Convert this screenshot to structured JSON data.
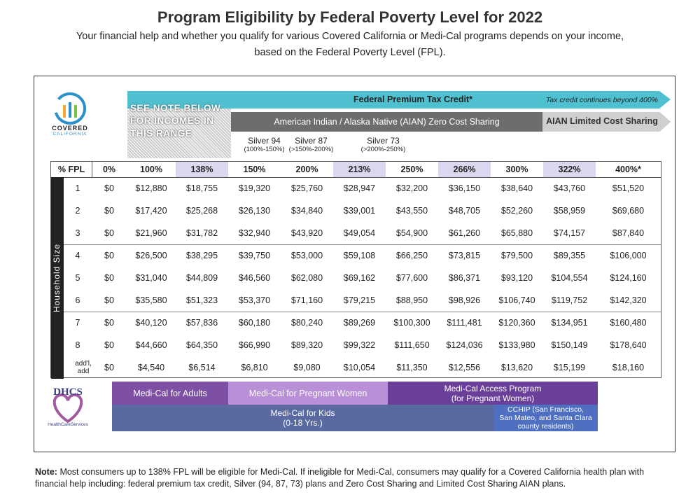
{
  "header": {
    "title": "Program Eligibility by Federal Poverty Level for 2022",
    "subtitle": [
      "Your financial help and whether you qualify for various Covered California or Medi-Cal programs depends on your income,",
      "based on the Federal Poverty Level (FPL)."
    ]
  },
  "logos": {
    "covered_top": "COVERED",
    "covered_bottom": "CALIFORNIA",
    "dhcs": "DHCS",
    "dhcs_sub": "HealthCareServices"
  },
  "bands": {
    "note": "SEE NOTE BELOW FOR INCOMES IN THIS RANGE",
    "ptc": "Federal Premium Tax Credit*",
    "ptc_note": "Tax credit continues beyond 400%",
    "aian": "American Indian / Alaska Native (AIAN) Zero Cost Sharing",
    "aian_limited": "AIAN Limited Cost Sharing",
    "silver": [
      {
        "name": "Silver 94",
        "range": "(100%-150%)"
      },
      {
        "name": "Silver 87",
        "range": "(>150%-200%)"
      },
      {
        "name": "Silver 73",
        "range": "(>200%-250%)"
      }
    ]
  },
  "table": {
    "side_label": "Household Size",
    "columns": [
      "% FPL",
      "0%",
      "100%",
      "138%",
      "150%",
      "200%",
      "213%",
      "250%",
      "266%",
      "300%",
      "322%",
      "400%*"
    ],
    "rows": [
      [
        "1",
        "$0",
        "$12,880",
        "$18,755",
        "$19,320",
        "$25,760",
        "$28,947",
        "$32,200",
        "$36,150",
        "$38,640",
        "$43,760",
        "$51,520"
      ],
      [
        "2",
        "$0",
        "$17,420",
        "$25,268",
        "$26,130",
        "$34,840",
        "$39,001",
        "$43,550",
        "$48,705",
        "$52,260",
        "$58,959",
        "$69,680"
      ],
      [
        "3",
        "$0",
        "$21,960",
        "$31,782",
        "$32,940",
        "$43,920",
        "$49,054",
        "$54,900",
        "$61,260",
        "$65,880",
        "$74,157",
        "$87,840"
      ],
      [
        "4",
        "$0",
        "$26,500",
        "$38,295",
        "$39,750",
        "$53,000",
        "$59,108",
        "$66,250",
        "$73,815",
        "$79,500",
        "$89,355",
        "$106,000"
      ],
      [
        "5",
        "$0",
        "$31,040",
        "$44,809",
        "$46,560",
        "$62,080",
        "$69,162",
        "$77,600",
        "$86,371",
        "$93,120",
        "$104,554",
        "$124,160"
      ],
      [
        "6",
        "$0",
        "$35,580",
        "$51,323",
        "$53,370",
        "$71,160",
        "$79,215",
        "$88,950",
        "$98,926",
        "$106,740",
        "$119,752",
        "$142,320"
      ],
      [
        "7",
        "$0",
        "$40,120",
        "$57,836",
        "$60,180",
        "$80,240",
        "$89,269",
        "$100,300",
        "$111,481",
        "$120,360",
        "$134,951",
        "$160,480"
      ],
      [
        "8",
        "$0",
        "$44,660",
        "$64,350",
        "$66,990",
        "$89,320",
        "$99,322",
        "$111,650",
        "$124,036",
        "$133,980",
        "$150,149",
        "$178,640"
      ],
      [
        "add'l, add",
        "$0",
        "$4,540",
        "$6,514",
        "$6,810",
        "$9,080",
        "$10,054",
        "$11,350",
        "$12,556",
        "$13,620",
        "$15,199",
        "$18,160"
      ]
    ]
  },
  "medi_cal": {
    "adults": "Medi-Cal for Adults",
    "pregnant": "Medi-Cal for Pregnant Women",
    "access": [
      "Medi-Cal Access Program",
      "(for Pregnant Women)"
    ],
    "kids": [
      "Medi-Cal for Kids",
      "(0-18 Yrs.)"
    ],
    "cchip": [
      "CCHIP (San Francisco,",
      "San Mateo, and Santa Clara",
      "county residents)"
    ]
  },
  "note": {
    "label": "Note:",
    "text": "Most consumers up to 138% FPL will be eligible for Medi-Cal. If ineligible for Medi-Cal, consumers may qualify for a Covered California health plan with financial help including: federal premium tax credit, Silver (94, 87, 73) plans and Zero Cost Sharing and Limited Cost Sharing AIAN plans."
  }
}
